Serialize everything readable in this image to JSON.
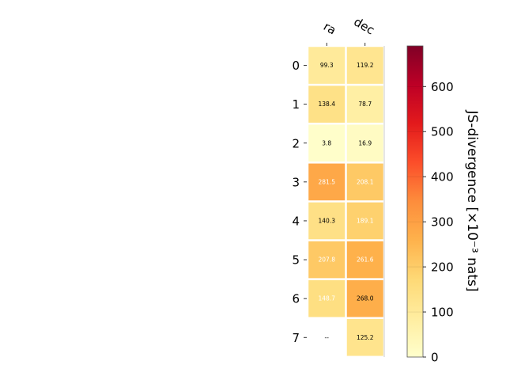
{
  "chart_data": {
    "type": "heatmap",
    "columns": [
      "ra",
      "dec"
    ],
    "rows": [
      "0",
      "1",
      "2",
      "3",
      "4",
      "5",
      "6",
      "7"
    ],
    "values": [
      [
        99.3,
        119.2
      ],
      [
        138.4,
        78.7
      ],
      [
        3.8,
        16.9
      ],
      [
        281.5,
        208.1
      ],
      [
        140.3,
        189.1
      ],
      [
        207.8,
        261.6
      ],
      [
        148.7,
        268.0
      ],
      [
        null,
        125.2
      ]
    ],
    "cell_labels": [
      [
        "99.3",
        "119.2"
      ],
      [
        "138.4",
        "78.7"
      ],
      [
        "3.8",
        "16.9"
      ],
      [
        "281.5",
        "208.1"
      ],
      [
        "140.3",
        "189.1"
      ],
      [
        "207.8",
        "261.6"
      ],
      [
        "148.7",
        "268.0"
      ],
      [
        "--",
        "125.2"
      ]
    ],
    "label_colors": [
      [
        "#000000",
        "#000000"
      ],
      [
        "#000000",
        "#000000"
      ],
      [
        "#000000",
        "#000000"
      ],
      [
        "#ffffff",
        "#ffffff"
      ],
      [
        "#000000",
        "#ffffff"
      ],
      [
        "#ffffff",
        "#ffffff"
      ],
      [
        "#ffffff",
        "#000000"
      ],
      [
        "#000000",
        "#000000"
      ]
    ],
    "colorbar": {
      "label": "JS-divergence [×10⁻³ nats]",
      "range": [
        0,
        690
      ],
      "ticks": [
        "0",
        "100",
        "200",
        "300",
        "400",
        "500",
        "600"
      ],
      "tick_values": [
        0,
        100,
        200,
        300,
        400,
        500,
        600
      ],
      "colormap": "YlOrRd"
    }
  }
}
